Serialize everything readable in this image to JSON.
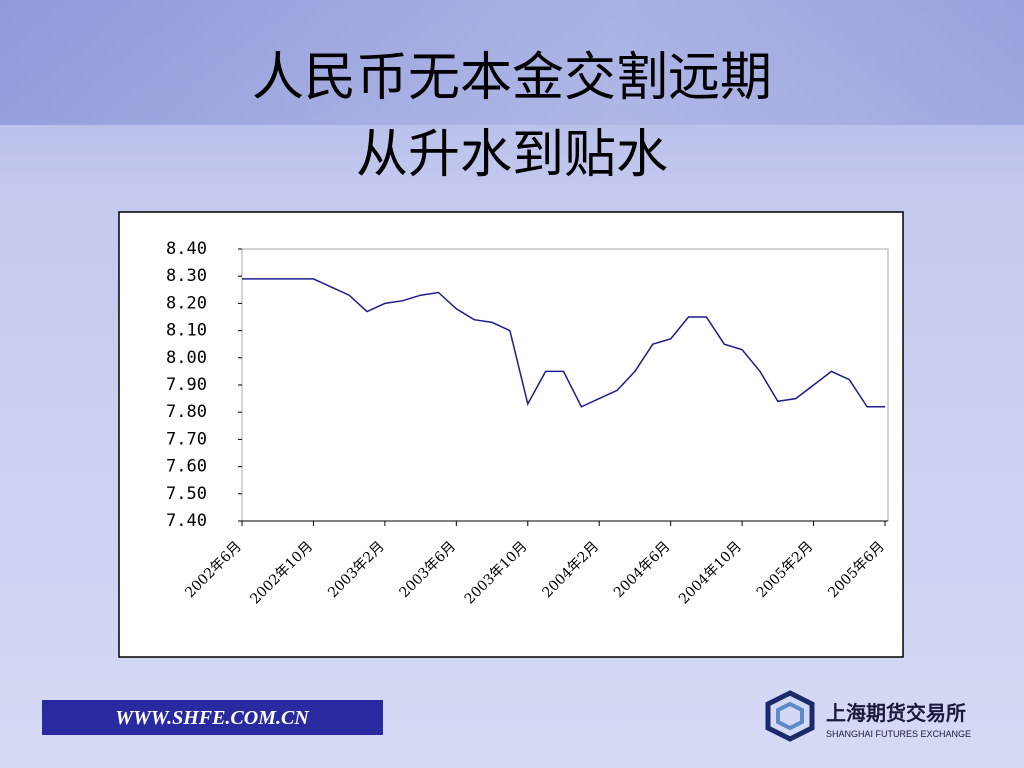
{
  "chart_data": {
    "type": "line",
    "title": "人民币无本金交割远期",
    "subtitle": "从升水到贴水",
    "categories": [
      "2002年6月",
      null,
      null,
      null,
      "2002年10月",
      null,
      null,
      null,
      "2003年2月",
      null,
      null,
      null,
      "2003年6月",
      null,
      null,
      null,
      "2003年10月",
      null,
      null,
      null,
      "2004年2月",
      null,
      null,
      null,
      "2004年6月",
      null,
      null,
      null,
      "2004年10月",
      null,
      null,
      null,
      "2005年2月",
      null,
      null,
      null,
      "2005年6月"
    ],
    "series": [
      {
        "color": "#1c1c8c",
        "values": [
          8.29,
          8.29,
          8.29,
          8.29,
          8.29,
          8.26,
          8.23,
          8.17,
          8.2,
          8.21,
          8.23,
          8.24,
          8.18,
          8.14,
          8.13,
          8.1,
          7.83,
          7.95,
          7.95,
          7.82,
          7.85,
          7.88,
          7.95,
          8.05,
          8.07,
          8.15,
          8.15,
          8.05,
          8.03,
          7.95,
          7.84,
          7.85,
          7.9,
          7.95,
          7.92,
          7.82,
          7.82
        ]
      }
    ],
    "ylim": [
      7.4,
      8.4
    ],
    "yticks": [
      {
        "value": 7.4,
        "label": "7.40"
      },
      {
        "value": 7.5,
        "label": "7.50"
      },
      {
        "value": 7.6,
        "label": "7.60"
      },
      {
        "value": 7.7,
        "label": "7.70"
      },
      {
        "value": 7.8,
        "label": "7.80"
      },
      {
        "value": 7.9,
        "label": "7.90"
      },
      {
        "value": 8.0,
        "label": "8.00"
      },
      {
        "value": 8.1,
        "label": "8.10"
      },
      {
        "value": 8.2,
        "label": "8.20"
      },
      {
        "value": 8.3,
        "label": "8.30"
      },
      {
        "value": 8.4,
        "label": "8.40"
      }
    ],
    "grid": false
  },
  "footer": {
    "url": "WWW.SHFE.COM.CN",
    "logo_cn": "上海期货交易所",
    "logo_en": "SHANGHAI FUTURES EXCHANGE"
  }
}
